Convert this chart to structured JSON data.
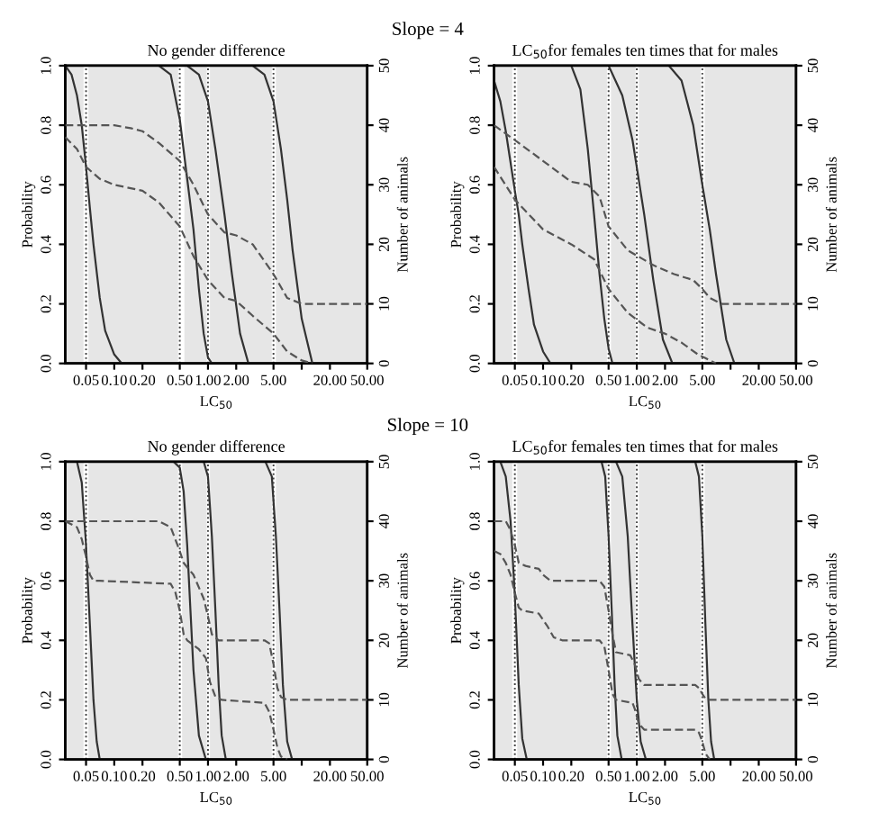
{
  "chart_data": [
    {
      "type": "line",
      "title": "No gender difference",
      "xlabel": "LC$_{50}$",
      "ylabel": "Probability",
      "y2label": "Number of animals",
      "annotations": [
        "Slope = 4"
      ],
      "log": "x",
      "xlim": [
        0.03,
        50
      ],
      "xticks": [
        {
          "value": 0.05,
          "label": "0.05"
        },
        {
          "value": 0.1,
          "label": "0.10"
        },
        {
          "value": 0.2,
          "label": "0.20"
        },
        {
          "value": 0.5,
          "label": "0.50"
        },
        {
          "value": 1,
          "label": "1.00"
        },
        {
          "value": 2,
          "label": "2.00"
        },
        {
          "value": 5,
          "label": "5.00"
        },
        {
          "value": 10,
          "label": null
        },
        {
          "value": 20,
          "label": "20.00"
        },
        {
          "value": 50,
          "label": "50.00"
        }
      ],
      "ylim": [
        0,
        1
      ],
      "yticks": [
        {
          "value": 0,
          "label": "0.0"
        },
        {
          "value": 0.2,
          "label": "0.2"
        },
        {
          "value": 0.4,
          "label": "0.4"
        },
        {
          "value": 0.6,
          "label": "0.6"
        },
        {
          "value": 0.8,
          "label": "0.8"
        },
        {
          "value": 1,
          "label": "1.0"
        }
      ],
      "y2lim": [
        0,
        50
      ],
      "y2ticks": [
        0,
        10,
        20,
        30,
        40,
        50
      ],
      "series": [
        {
          "color": "#333333",
          "line_style": "solid",
          "x": [
            0.03,
            0.035,
            0.04,
            0.045,
            0.05,
            0.055,
            0.06,
            0.07,
            0.08,
            0.1,
            0.12
          ],
          "values": [
            1,
            0.97,
            0.9,
            0.8,
            0.66,
            0.52,
            0.4,
            0.22,
            0.11,
            0.03,
            0
          ]
        },
        {
          "color": "#333333",
          "line_style": "solid",
          "x": [
            0.3,
            0.4,
            0.5,
            0.6,
            0.7,
            0.8,
            0.9,
            1.0,
            1.1
          ],
          "values": [
            1,
            0.97,
            0.82,
            0.62,
            0.45,
            0.25,
            0.1,
            0.02,
            0
          ]
        },
        {
          "color": "#333333",
          "line_style": "solid",
          "x": [
            0.6,
            0.8,
            1.0,
            1.2,
            1.5,
            1.8,
            2.2,
            2.7
          ],
          "values": [
            1,
            0.97,
            0.88,
            0.72,
            0.5,
            0.3,
            0.1,
            0
          ]
        },
        {
          "color": "#333333",
          "line_style": "solid",
          "x": [
            3,
            4,
            5,
            6,
            7,
            8,
            10,
            13
          ],
          "values": [
            1,
            0.97,
            0.88,
            0.72,
            0.55,
            0.38,
            0.15,
            0
          ]
        },
        {
          "color": "#555555",
          "line_style": "dashed",
          "axis": "y2",
          "x": [
            0.03,
            0.1,
            0.15,
            0.2,
            0.3,
            0.5,
            0.7,
            1,
            1.5,
            2,
            3,
            5,
            7,
            10,
            50
          ],
          "values": [
            40,
            40,
            39.5,
            39,
            37,
            34,
            30,
            25,
            22,
            21.5,
            20,
            15,
            11,
            10,
            10
          ]
        },
        {
          "color": "#555555",
          "line_style": "dashed",
          "axis": "y2",
          "x": [
            0.03,
            0.04,
            0.05,
            0.07,
            0.1,
            0.2,
            0.3,
            0.5,
            0.7,
            1,
            1.5,
            2,
            3,
            5,
            7,
            10,
            13
          ],
          "values": [
            38,
            36,
            33,
            31,
            30,
            29,
            27,
            23,
            18,
            14,
            11,
            10.5,
            8,
            5,
            2,
            0.5,
            0
          ]
        }
      ],
      "ref_lines": [
        {
          "axis": "x",
          "value": 0.05,
          "line_style": "dotted",
          "color": "#444444"
        },
        {
          "axis": "x",
          "value": 0.5,
          "line_style": "dotted",
          "color": "#444444"
        },
        {
          "axis": "x",
          "value": 1,
          "line_style": "dotted",
          "color": "#444444"
        },
        {
          "axis": "x",
          "value": 5,
          "line_style": "dotted",
          "color": "#444444"
        }
      ],
      "bands": [
        {
          "axis": "x",
          "from": 0.03,
          "to": 0.047,
          "color": "#e6e6e6"
        },
        {
          "axis": "x",
          "from": 0.053,
          "to": 0.48,
          "color": "#e6e6e6"
        },
        {
          "axis": "x",
          "from": 0.56,
          "to": 0.97,
          "color": "#e6e6e6"
        },
        {
          "axis": "x",
          "from": 1.05,
          "to": 4.8,
          "color": "#e6e6e6"
        },
        {
          "axis": "x",
          "from": 5.3,
          "to": 50,
          "color": "#e6e6e6"
        }
      ]
    },
    {
      "type": "line",
      "title": "LC$_{50}$for females ten times that for males",
      "xlabel": "LC$_{50}$",
      "ylabel": "Probability",
      "y2label": "Number of animals",
      "log": "x",
      "xlim": [
        0.03,
        50
      ],
      "xticks": [
        {
          "value": 0.05,
          "label": "0.05"
        },
        {
          "value": 0.1,
          "label": "0.10"
        },
        {
          "value": 0.2,
          "label": "0.20"
        },
        {
          "value": 0.5,
          "label": "0.50"
        },
        {
          "value": 1,
          "label": "1.00"
        },
        {
          "value": 2,
          "label": "2.00"
        },
        {
          "value": 5,
          "label": "5.00"
        },
        {
          "value": 10,
          "label": null
        },
        {
          "value": 20,
          "label": "20.00"
        },
        {
          "value": 50,
          "label": "50.00"
        }
      ],
      "ylim": [
        0,
        1
      ],
      "yticks": [
        {
          "value": 0,
          "label": "0.0"
        },
        {
          "value": 0.2,
          "label": "0.2"
        },
        {
          "value": 0.4,
          "label": "0.4"
        },
        {
          "value": 0.6,
          "label": "0.6"
        },
        {
          "value": 0.8,
          "label": "0.8"
        },
        {
          "value": 1,
          "label": "1.0"
        }
      ],
      "y2lim": [
        0,
        50
      ],
      "y2ticks": [
        0,
        10,
        20,
        30,
        40,
        50
      ],
      "series": [
        {
          "color": "#333333",
          "line_style": "solid",
          "x": [
            0.03,
            0.035,
            0.04,
            0.05,
            0.055,
            0.06,
            0.07,
            0.08,
            0.1,
            0.12
          ],
          "values": [
            0.95,
            0.88,
            0.78,
            0.58,
            0.5,
            0.4,
            0.25,
            0.13,
            0.04,
            0
          ]
        },
        {
          "color": "#333333",
          "line_style": "solid",
          "x": [
            0.2,
            0.25,
            0.3,
            0.35,
            0.4,
            0.45,
            0.5,
            0.55
          ],
          "values": [
            1,
            0.92,
            0.72,
            0.5,
            0.3,
            0.15,
            0.05,
            0
          ]
        },
        {
          "color": "#333333",
          "line_style": "solid",
          "x": [
            0.5,
            0.7,
            0.9,
            1.2,
            1.5,
            1.9,
            2.4
          ],
          "values": [
            1,
            0.9,
            0.75,
            0.5,
            0.28,
            0.08,
            0
          ]
        },
        {
          "color": "#333333",
          "line_style": "solid",
          "x": [
            2.2,
            3,
            4,
            5,
            6,
            7,
            9,
            11
          ],
          "values": [
            1,
            0.95,
            0.8,
            0.6,
            0.45,
            0.3,
            0.08,
            0
          ]
        },
        {
          "color": "#555555",
          "line_style": "dashed",
          "axis": "y2",
          "x": [
            0.03,
            0.05,
            0.1,
            0.2,
            0.3,
            0.4,
            0.5,
            0.8,
            1.5,
            2.5,
            4,
            5,
            6,
            8,
            50
          ],
          "values": [
            40,
            37.5,
            34,
            30.5,
            30,
            28,
            23,
            19,
            16.5,
            15,
            14,
            12.5,
            11,
            10,
            10
          ]
        },
        {
          "color": "#555555",
          "line_style": "dashed",
          "axis": "y2",
          "x": [
            0.03,
            0.05,
            0.1,
            0.2,
            0.35,
            0.5,
            0.8,
            1.3,
            2,
            3,
            4.5,
            7
          ],
          "values": [
            33,
            27.5,
            22.5,
            20,
            17.5,
            12.5,
            8.5,
            6,
            5,
            3.5,
            1.5,
            0
          ]
        }
      ],
      "ref_lines": [
        {
          "axis": "x",
          "value": 0.05,
          "line_style": "dotted",
          "color": "#444444"
        },
        {
          "axis": "x",
          "value": 0.5,
          "line_style": "dotted",
          "color": "#444444"
        },
        {
          "axis": "x",
          "value": 1,
          "line_style": "dotted",
          "color": "#444444"
        },
        {
          "axis": "x",
          "value": 5,
          "line_style": "dotted",
          "color": "#444444"
        }
      ],
      "bands": [
        {
          "axis": "x",
          "from": 0.03,
          "to": 0.047,
          "color": "#e6e6e6"
        },
        {
          "axis": "x",
          "from": 0.053,
          "to": 0.48,
          "color": "#e6e6e6"
        },
        {
          "axis": "x",
          "from": 0.53,
          "to": 0.97,
          "color": "#e6e6e6"
        },
        {
          "axis": "x",
          "from": 1.05,
          "to": 4.8,
          "color": "#e6e6e6"
        },
        {
          "axis": "x",
          "from": 5.3,
          "to": 50,
          "color": "#e6e6e6"
        }
      ]
    },
    {
      "type": "line",
      "title": "No gender difference",
      "xlabel": "LC$_{50}$",
      "ylabel": "Probability",
      "y2label": "Number of animals",
      "annotations": [
        "Slope = 10"
      ],
      "log": "x",
      "xlim": [
        0.03,
        50
      ],
      "xticks": [
        {
          "value": 0.05,
          "label": "0.05"
        },
        {
          "value": 0.1,
          "label": "0.10"
        },
        {
          "value": 0.2,
          "label": "0.20"
        },
        {
          "value": 0.5,
          "label": "0.50"
        },
        {
          "value": 1,
          "label": "1.00"
        },
        {
          "value": 2,
          "label": "2.00"
        },
        {
          "value": 5,
          "label": "5.00"
        },
        {
          "value": 10,
          "label": null
        },
        {
          "value": 20,
          "label": "20.00"
        },
        {
          "value": 50,
          "label": "50.00"
        }
      ],
      "ylim": [
        0,
        1
      ],
      "yticks": [
        {
          "value": 0,
          "label": "0.0"
        },
        {
          "value": 0.2,
          "label": "0.2"
        },
        {
          "value": 0.4,
          "label": "0.4"
        },
        {
          "value": 0.6,
          "label": "0.6"
        },
        {
          "value": 0.8,
          "label": "0.8"
        },
        {
          "value": 1,
          "label": "1.0"
        }
      ],
      "y2lim": [
        0,
        50
      ],
      "y2ticks": [
        0,
        10,
        20,
        30,
        40,
        50
      ],
      "series": [
        {
          "color": "#333333",
          "line_style": "solid",
          "x": [
            0.03,
            0.04,
            0.045,
            0.05,
            0.055,
            0.06,
            0.065,
            0.07
          ],
          "values": [
            1,
            1,
            0.93,
            0.72,
            0.45,
            0.2,
            0.06,
            0
          ]
        },
        {
          "color": "#333333",
          "line_style": "solid",
          "x": [
            0.43,
            0.5,
            0.55,
            0.6,
            0.65,
            0.7,
            0.8,
            0.95
          ],
          "values": [
            1,
            0.98,
            0.9,
            0.72,
            0.5,
            0.3,
            0.08,
            0
          ]
        },
        {
          "color": "#333333",
          "line_style": "solid",
          "x": [
            0.9,
            1.0,
            1.1,
            1.2,
            1.3,
            1.4,
            1.55
          ],
          "values": [
            1,
            0.95,
            0.75,
            0.5,
            0.25,
            0.08,
            0
          ]
        },
        {
          "color": "#333333",
          "line_style": "solid",
          "x": [
            4.1,
            4.8,
            5.3,
            5.8,
            6.3,
            7,
            7.9
          ],
          "values": [
            1,
            0.95,
            0.75,
            0.5,
            0.25,
            0.06,
            0
          ]
        },
        {
          "color": "#555555",
          "line_style": "dashed",
          "axis": "y2",
          "x": [
            0.03,
            0.3,
            0.4,
            0.5,
            0.55,
            0.7,
            0.9,
            1,
            1.1,
            1.3,
            4,
            4.5,
            5,
            5.5,
            6,
            7,
            50
          ],
          "values": [
            40,
            40,
            39,
            35,
            33,
            31,
            27,
            24,
            21,
            20,
            20,
            19.5,
            16,
            12,
            10.5,
            10,
            10
          ]
        },
        {
          "color": "#555555",
          "line_style": "dashed",
          "axis": "y2",
          "x": [
            0.03,
            0.04,
            0.045,
            0.05,
            0.055,
            0.06,
            0.07,
            0.4,
            0.45,
            0.5,
            0.55,
            0.6,
            0.8,
            0.95,
            1.05,
            1.2,
            1.4,
            4,
            4.5,
            5,
            5.5,
            6,
            7
          ],
          "values": [
            40,
            39,
            37,
            34,
            31,
            30,
            30,
            29.5,
            28,
            25,
            21,
            20,
            18.5,
            17,
            13,
            10.5,
            10,
            9.5,
            8,
            5,
            2,
            0.5,
            0
          ]
        }
      ],
      "ref_lines": [
        {
          "axis": "x",
          "value": 0.05,
          "line_style": "dotted",
          "color": "#444444"
        },
        {
          "axis": "x",
          "value": 0.5,
          "line_style": "dotted",
          "color": "#444444"
        },
        {
          "axis": "x",
          "value": 1,
          "line_style": "dotted",
          "color": "#444444"
        },
        {
          "axis": "x",
          "value": 5,
          "line_style": "dotted",
          "color": "#444444"
        }
      ],
      "bands": [
        {
          "axis": "x",
          "from": 0.03,
          "to": 0.047,
          "color": "#e6e6e6"
        },
        {
          "axis": "x",
          "from": 0.053,
          "to": 0.48,
          "color": "#e6e6e6"
        },
        {
          "axis": "x",
          "from": 0.53,
          "to": 0.97,
          "color": "#e6e6e6"
        },
        {
          "axis": "x",
          "from": 1.05,
          "to": 4.8,
          "color": "#e6e6e6"
        },
        {
          "axis": "x",
          "from": 5.3,
          "to": 50,
          "color": "#e6e6e6"
        }
      ]
    },
    {
      "type": "line",
      "title": "LC$_{50}$for females ten times that for males",
      "xlabel": "LC$_{50}$",
      "ylabel": "Probability",
      "y2label": "Number of animals",
      "log": "x",
      "xlim": [
        0.03,
        50
      ],
      "xticks": [
        {
          "value": 0.05,
          "label": "0.05"
        },
        {
          "value": 0.1,
          "label": "0.10"
        },
        {
          "value": 0.2,
          "label": "0.20"
        },
        {
          "value": 0.5,
          "label": "0.50"
        },
        {
          "value": 1,
          "label": "1.00"
        },
        {
          "value": 2,
          "label": "2.00"
        },
        {
          "value": 5,
          "label": "5.00"
        },
        {
          "value": 10,
          "label": null
        },
        {
          "value": 20,
          "label": "20.00"
        },
        {
          "value": 50,
          "label": "50.00"
        }
      ],
      "ylim": [
        0,
        1
      ],
      "yticks": [
        {
          "value": 0,
          "label": "0.0"
        },
        {
          "value": 0.2,
          "label": "0.2"
        },
        {
          "value": 0.4,
          "label": "0.4"
        },
        {
          "value": 0.6,
          "label": "0.6"
        },
        {
          "value": 0.8,
          "label": "0.8"
        },
        {
          "value": 1,
          "label": "1.0"
        }
      ],
      "y2lim": [
        0,
        50
      ],
      "y2ticks": [
        0,
        10,
        20,
        30,
        40,
        50
      ],
      "series": [
        {
          "color": "#333333",
          "line_style": "solid",
          "x": [
            0.03,
            0.035,
            0.04,
            0.045,
            0.05,
            0.055,
            0.06,
            0.067
          ],
          "values": [
            1,
            1,
            0.95,
            0.8,
            0.55,
            0.25,
            0.07,
            0
          ]
        },
        {
          "color": "#333333",
          "line_style": "solid",
          "x": [
            0.42,
            0.46,
            0.5,
            0.54,
            0.58,
            0.62,
            0.69
          ],
          "values": [
            1,
            0.95,
            0.75,
            0.5,
            0.25,
            0.08,
            0
          ]
        },
        {
          "color": "#333333",
          "line_style": "solid",
          "x": [
            0.6,
            0.7,
            0.8,
            0.9,
            1.0,
            1.1,
            1.25
          ],
          "values": [
            1,
            0.95,
            0.75,
            0.45,
            0.2,
            0.06,
            0
          ]
        },
        {
          "color": "#333333",
          "line_style": "solid",
          "x": [
            4.2,
            4.6,
            5,
            5.4,
            5.8,
            6.2,
            6.7
          ],
          "values": [
            1,
            0.95,
            0.75,
            0.45,
            0.2,
            0.06,
            0
          ]
        },
        {
          "color": "#555555",
          "line_style": "dashed",
          "axis": "y2",
          "x": [
            0.03,
            0.04,
            0.045,
            0.05,
            0.055,
            0.065,
            0.09,
            0.1,
            0.12,
            0.14,
            0.4,
            0.45,
            0.5,
            0.55,
            0.6,
            0.85,
            0.95,
            1.05,
            1.2,
            4.2,
            4.6,
            5,
            5.4,
            6,
            50
          ],
          "values": [
            40,
            40,
            38.5,
            36,
            33,
            32.5,
            32,
            31,
            30,
            30,
            30,
            29,
            25,
            21,
            18,
            17.5,
            16,
            13.5,
            12.5,
            12.5,
            12,
            11,
            10.2,
            10,
            10
          ]
        },
        {
          "color": "#555555",
          "line_style": "dashed",
          "axis": "y2",
          "x": [
            0.03,
            0.035,
            0.04,
            0.045,
            0.05,
            0.055,
            0.06,
            0.09,
            0.11,
            0.13,
            0.16,
            0.4,
            0.45,
            0.5,
            0.55,
            0.6,
            0.9,
            0.95,
            1.05,
            1.2,
            4.2,
            4.6,
            5,
            5.4,
            6
          ],
          "values": [
            35,
            34.5,
            33,
            31,
            28,
            25.5,
            25,
            24.5,
            22.5,
            20.5,
            20,
            20,
            19,
            15,
            11,
            10,
            9.5,
            8.5,
            6,
            5,
            5,
            4.5,
            3,
            1,
            0
          ]
        }
      ],
      "ref_lines": [
        {
          "axis": "x",
          "value": 0.05,
          "line_style": "dotted",
          "color": "#444444"
        },
        {
          "axis": "x",
          "value": 0.5,
          "line_style": "dotted",
          "color": "#444444"
        },
        {
          "axis": "x",
          "value": 1,
          "line_style": "dotted",
          "color": "#444444"
        },
        {
          "axis": "x",
          "value": 5,
          "line_style": "dotted",
          "color": "#444444"
        }
      ],
      "bands": [
        {
          "axis": "x",
          "from": 0.03,
          "to": 0.047,
          "color": "#e6e6e6"
        },
        {
          "axis": "x",
          "from": 0.053,
          "to": 0.48,
          "color": "#e6e6e6"
        },
        {
          "axis": "x",
          "from": 0.53,
          "to": 0.97,
          "color": "#e6e6e6"
        },
        {
          "axis": "x",
          "from": 1.05,
          "to": 4.8,
          "color": "#e6e6e6"
        },
        {
          "axis": "x",
          "from": 5.3,
          "to": 50,
          "color": "#e6e6e6"
        }
      ]
    }
  ]
}
